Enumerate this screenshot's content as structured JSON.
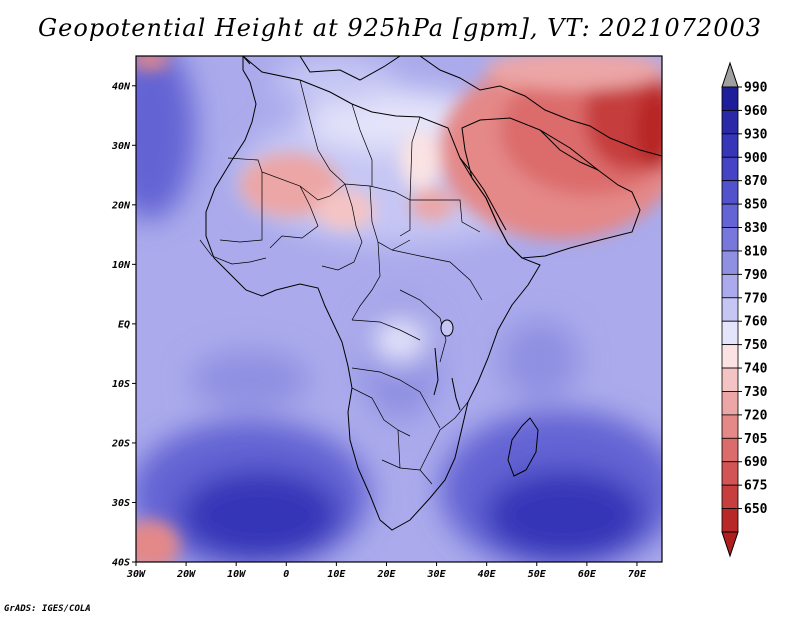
{
  "title": "Geopotential Height at 925hPa [gpm], VT: 2021072003",
  "credit": "GrADS: IGES/COLA",
  "map": {
    "lat_range": [
      -40,
      45
    ],
    "lon_range": [
      -30,
      75
    ],
    "lat_ticks": [
      {
        "value": 40,
        "label": "40N"
      },
      {
        "value": 30,
        "label": "30N"
      },
      {
        "value": 20,
        "label": "20N"
      },
      {
        "value": 10,
        "label": "10N"
      },
      {
        "value": 0,
        "label": "EQ"
      },
      {
        "value": -10,
        "label": "10S"
      },
      {
        "value": -20,
        "label": "20S"
      },
      {
        "value": -30,
        "label": "30S"
      },
      {
        "value": -40,
        "label": "40S"
      }
    ],
    "lon_ticks": [
      {
        "value": -30,
        "label": "30W"
      },
      {
        "value": -20,
        "label": "20W"
      },
      {
        "value": -10,
        "label": "10W"
      },
      {
        "value": 0,
        "label": "0"
      },
      {
        "value": 10,
        "label": "10E"
      },
      {
        "value": 20,
        "label": "20E"
      },
      {
        "value": 30,
        "label": "30E"
      },
      {
        "value": 40,
        "label": "40E"
      },
      {
        "value": 50,
        "label": "50E"
      },
      {
        "value": 60,
        "label": "60E"
      },
      {
        "value": 70,
        "label": "70E"
      }
    ]
  },
  "colorbar": {
    "levels": [
      {
        "label": "990",
        "color": "#1e1e9a"
      },
      {
        "label": "960",
        "color": "#2a2aa8"
      },
      {
        "label": "930",
        "color": "#3636b8"
      },
      {
        "label": "900",
        "color": "#4444c4"
      },
      {
        "label": "870",
        "color": "#5252cc"
      },
      {
        "label": "850",
        "color": "#6464d4"
      },
      {
        "label": "830",
        "color": "#7878dc"
      },
      {
        "label": "810",
        "color": "#9090e2"
      },
      {
        "label": "790",
        "color": "#aaaaec"
      },
      {
        "label": "770",
        "color": "#c6c6f4"
      },
      {
        "label": "760",
        "color": "#e4e4fa"
      },
      {
        "label": "750",
        "color": "#fbe3e3"
      },
      {
        "label": "740",
        "color": "#f4c4c4"
      },
      {
        "label": "730",
        "color": "#eca6a6"
      },
      {
        "label": "720",
        "color": "#e48888"
      },
      {
        "label": "705",
        "color": "#dc6c6c"
      },
      {
        "label": "690",
        "color": "#d25454"
      },
      {
        "label": "675",
        "color": "#c63e3e"
      },
      {
        "label": "650",
        "color": "#b82828"
      }
    ],
    "top_arrow_color": "#a0a0a0",
    "bottom_arrow_color": "#b01e1e"
  },
  "field_colors": {
    "ocean_base": "#aaaaec",
    "deep_low": "#3636b8",
    "mid_low": "#6464d4",
    "land_light": "#c6c6f4",
    "high_red": "#dc6c6c",
    "max_red": "#b82828"
  }
}
